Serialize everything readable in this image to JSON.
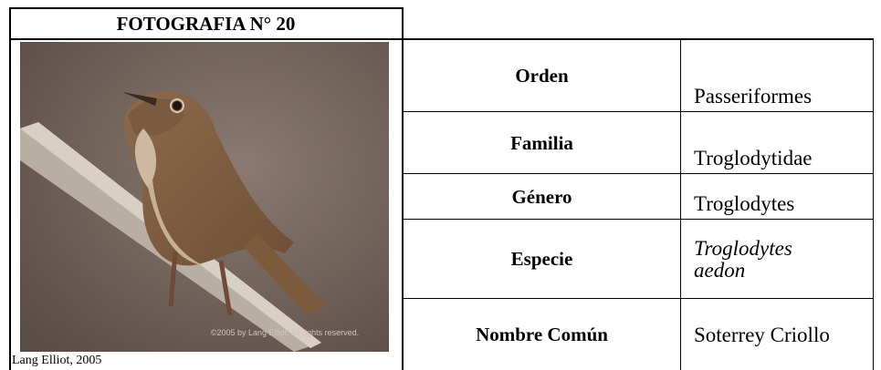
{
  "photo": {
    "title": "FOTOGRAFIA N° 20",
    "watermark": "©2005 by Lang Elliot. All rights reserved.",
    "caption": "Lang Elliot, 2005"
  },
  "table": {
    "rows": [
      [
        "Orden",
        "Passeriformes"
      ],
      [
        "Familia",
        "Troglodytidae"
      ],
      [
        "Género",
        "Troglodytes"
      ],
      [
        "Especie",
        "Troglodytes aedon"
      ],
      [
        "Nombre Común",
        "Soterrey Criollo"
      ]
    ]
  }
}
